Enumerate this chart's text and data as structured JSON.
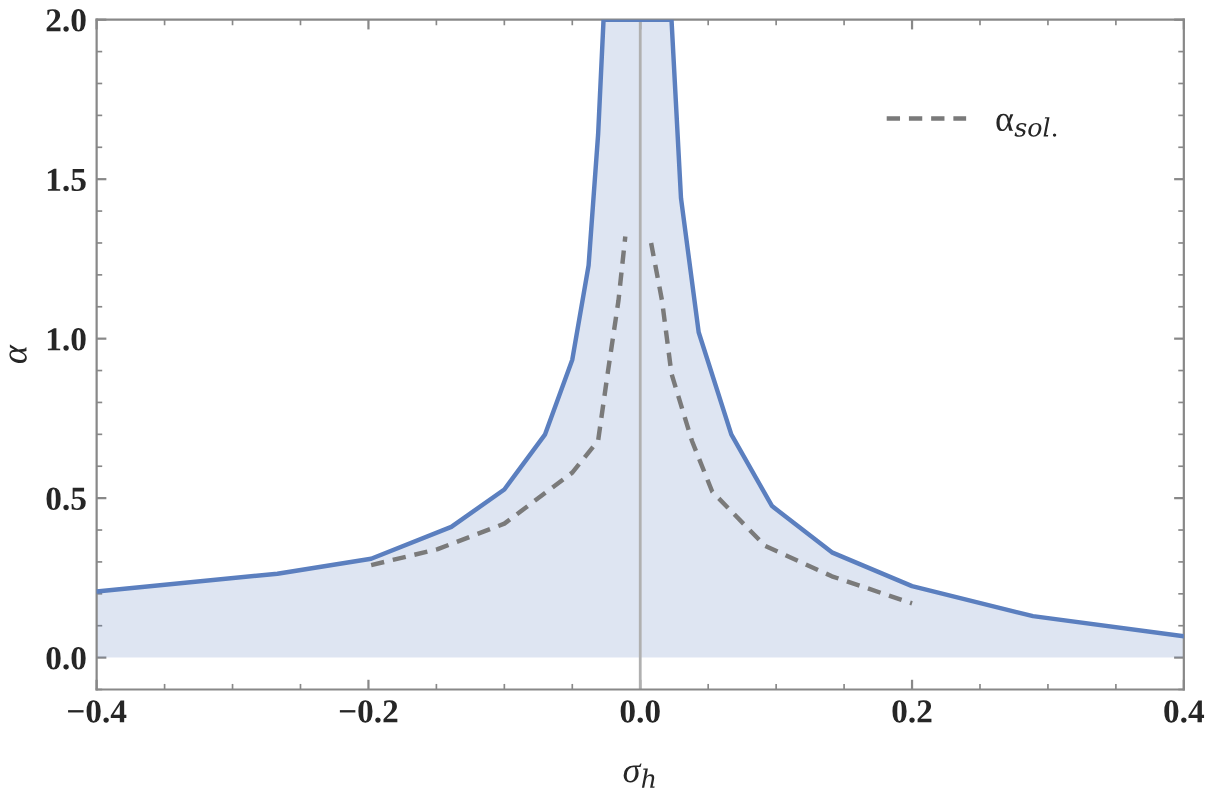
{
  "chart_data": {
    "type": "line",
    "xlabel": "σ$_{h}$",
    "ylabel": "α",
    "xlim": [
      -0.4,
      0.4
    ],
    "ylim": [
      -0.1,
      2.0
    ],
    "xticks": [
      {
        "value": -0.4,
        "label": "−0.4"
      },
      {
        "value": -0.2,
        "label": "−0.2"
      },
      {
        "value": 0,
        "label": "0.0"
      },
      {
        "value": 0.2,
        "label": "0.2"
      },
      {
        "value": 0.4,
        "label": "0.4"
      }
    ],
    "yticks": [
      {
        "value": 0,
        "label": "0.0"
      },
      {
        "value": 0.5,
        "label": "0.5"
      },
      {
        "value": 1.0,
        "label": "1.0"
      },
      {
        "value": 1.5,
        "label": "1.5"
      },
      {
        "value": 2.0,
        "label": "2.0"
      }
    ],
    "grid": false,
    "legend": "top right",
    "ref_lines": [
      {
        "axis": "x",
        "value": 0,
        "color": "#b0b0b0"
      }
    ],
    "series": [
      {
        "type": "area",
        "color": "#5b7fbf",
        "line_style": "solid",
        "x": [
          -0.4,
          -0.267,
          -0.198,
          -0.139,
          -0.1,
          -0.07,
          -0.05,
          -0.038,
          -0.031,
          -0.027,
          0,
          0.023,
          0.03,
          0.043,
          0.067,
          0.097,
          0.141,
          0.2,
          0.289,
          0.4
        ],
        "values": [
          0.207,
          0.263,
          0.31,
          0.41,
          0.527,
          0.7,
          0.934,
          1.23,
          1.64,
          2.0,
          2.0,
          2.0,
          1.44,
          1.02,
          0.7,
          0.475,
          0.33,
          0.224,
          0.13,
          0.067
        ]
      },
      {
        "name": "α$_{sol.}$",
        "color": "#7a7a7a",
        "line_style": "dashed",
        "x": [
          -0.198,
          -0.149,
          -0.1,
          -0.05,
          -0.031,
          -0.024,
          -0.016,
          -0.011
        ],
        "values": [
          0.29,
          0.34,
          0.42,
          0.58,
          0.68,
          0.89,
          1.12,
          1.32
        ]
      },
      {
        "color": "#7a7a7a",
        "line_style": "dashed",
        "x": [
          0.008,
          0.016,
          0.023,
          0.038,
          0.053,
          0.092,
          0.141,
          0.2
        ],
        "values": [
          1.3,
          1.12,
          0.89,
          0.68,
          0.52,
          0.35,
          0.255,
          0.17
        ]
      }
    ]
  }
}
